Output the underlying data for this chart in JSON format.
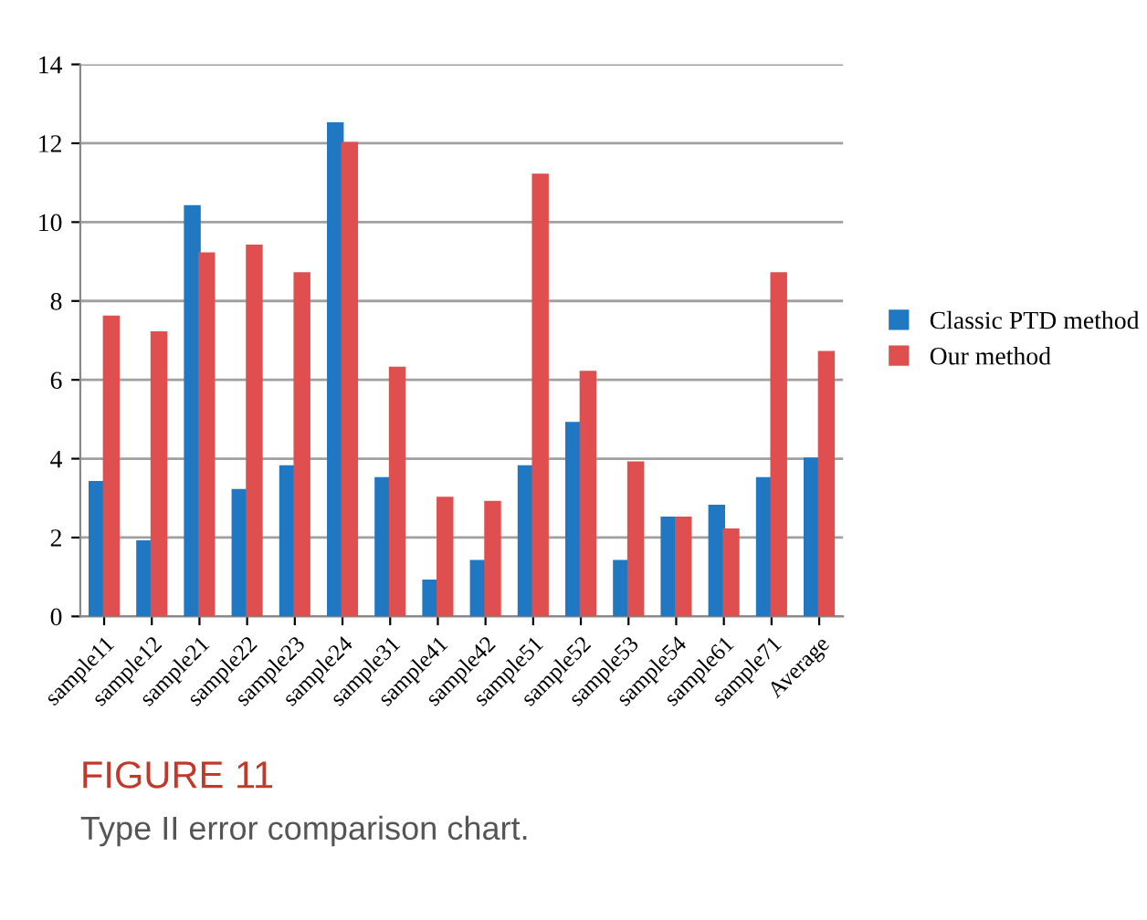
{
  "chart_data": {
    "type": "bar",
    "categories": [
      "sample11",
      "sample12",
      "sample21",
      "sample22",
      "sample23",
      "sample24",
      "sample31",
      "sample41",
      "sample42",
      "sample51",
      "sample52",
      "sample53",
      "sample54",
      "sample61",
      "sample71",
      "Average"
    ],
    "series": [
      {
        "name": "Classic PTD method",
        "color": "#1f78c1",
        "values": [
          3.4,
          1.9,
          10.4,
          3.2,
          3.8,
          12.5,
          3.5,
          0.9,
          1.4,
          3.8,
          4.9,
          1.4,
          2.5,
          2.8,
          3.5,
          4.0
        ]
      },
      {
        "name": "Our method",
        "color": "#e04f4f",
        "values": [
          7.6,
          7.2,
          9.2,
          9.4,
          8.7,
          12.0,
          6.3,
          3.0,
          2.9,
          11.2,
          6.2,
          3.9,
          2.5,
          2.2,
          8.7,
          6.7
        ]
      }
    ],
    "ylim": [
      0,
      14
    ],
    "yticks": [
      0,
      2,
      4,
      6,
      8,
      10,
      12,
      14
    ],
    "grid": "y",
    "legend": "right",
    "annotations": [
      "FIGURE 11",
      "Type II error comparison chart."
    ]
  }
}
